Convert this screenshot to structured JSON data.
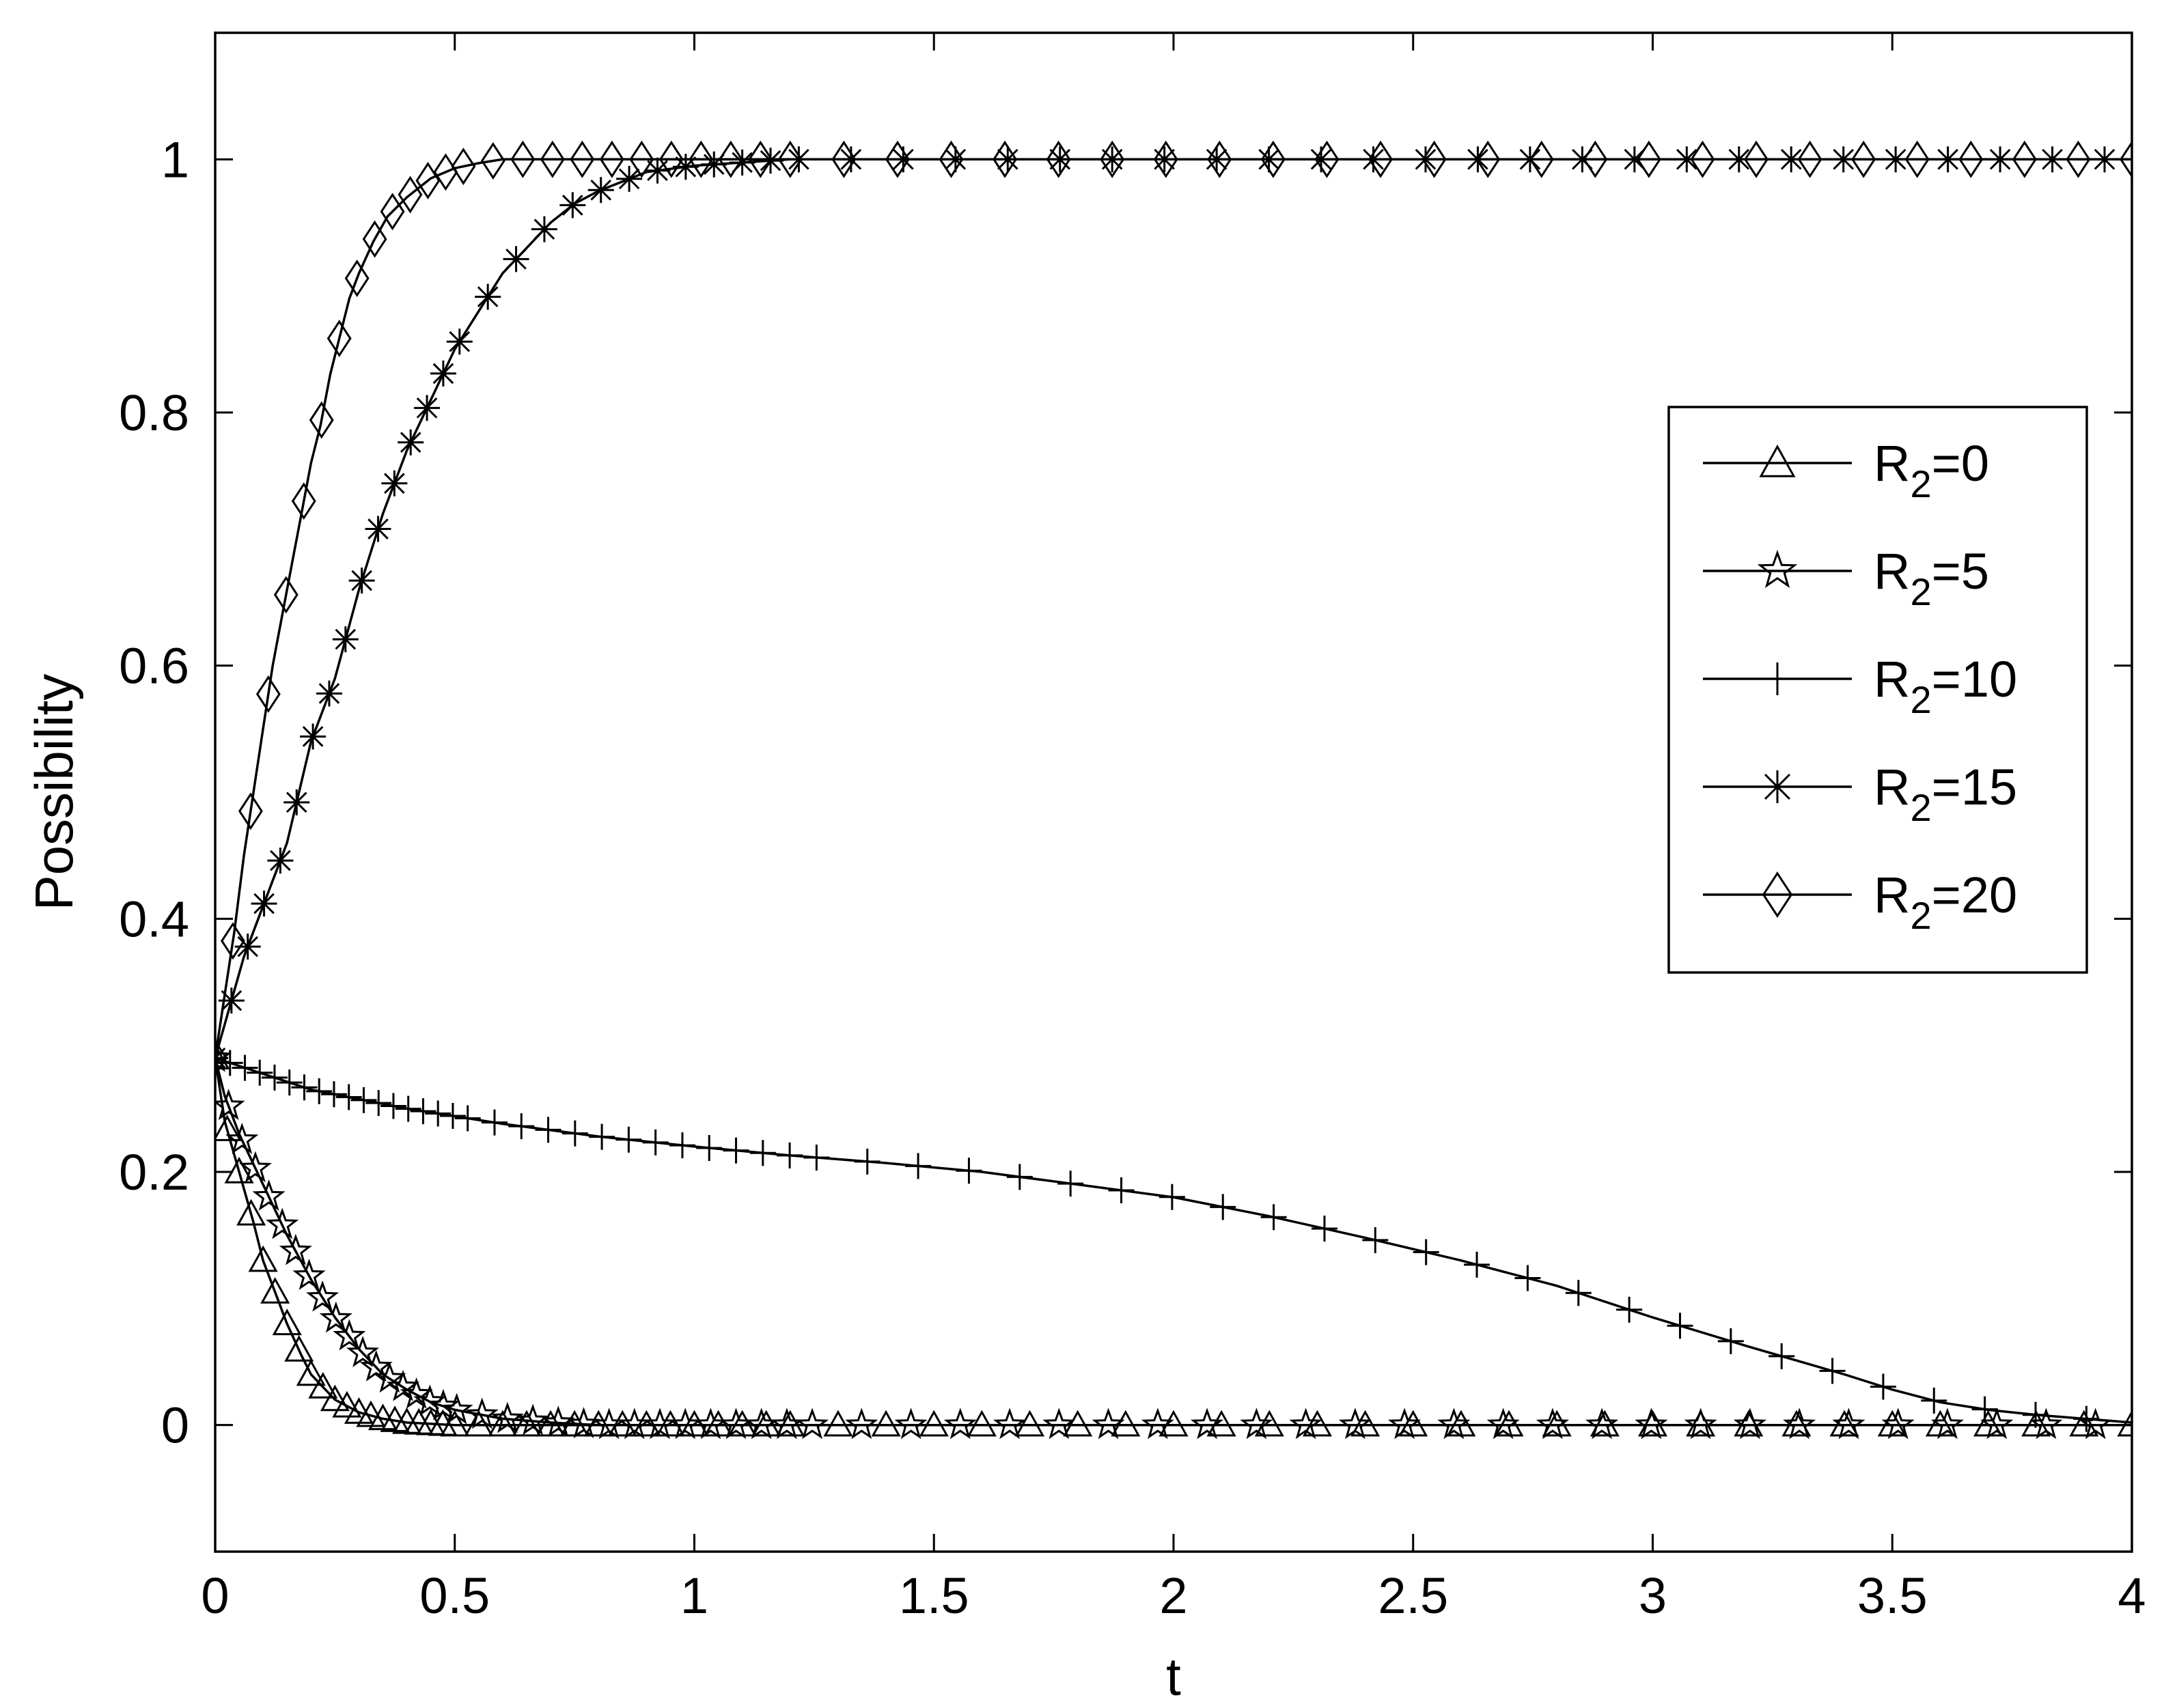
{
  "chart_data": {
    "type": "line",
    "title": "",
    "xlabel": "t",
    "ylabel": "Possibility",
    "xlim": [
      0,
      4
    ],
    "ylim": [
      -0.1,
      1.1
    ],
    "xticks": [
      0,
      0.5,
      1,
      1.5,
      2,
      2.5,
      3,
      3.5,
      4
    ],
    "xtick_labels": [
      "0",
      "0.5",
      "1",
      "1.5",
      "2",
      "2.5",
      "3",
      "3.5",
      "4"
    ],
    "yticks": [
      0,
      0.2,
      0.4,
      0.6,
      0.8,
      1
    ],
    "ytick_labels": [
      "0",
      "0.2",
      "0.4",
      "0.6",
      "0.8",
      "1"
    ],
    "grid": false,
    "legend_position": "right",
    "series": [
      {
        "name": "R2=0",
        "label_main": "R",
        "label_sub": "2",
        "label_rest": "=0",
        "marker": "triangle",
        "x": [
          0,
          0.02,
          0.05,
          0.08,
          0.1,
          0.13,
          0.15,
          0.18,
          0.2,
          0.25,
          0.3,
          0.35,
          0.4,
          0.5,
          0.6,
          0.8,
          1.0,
          1.5,
          2.0,
          2.5,
          3.0,
          3.5,
          4.0
        ],
        "y": [
          0.29,
          0.24,
          0.2,
          0.16,
          0.13,
          0.1,
          0.08,
          0.055,
          0.04,
          0.02,
          0.01,
          0.005,
          0.002,
          0,
          0,
          0,
          0,
          0,
          0,
          0,
          0,
          0,
          0
        ]
      },
      {
        "name": "R2=5",
        "label_main": "R",
        "label_sub": "2",
        "label_rest": "=5",
        "marker": "star",
        "x": [
          0,
          0.02,
          0.05,
          0.1,
          0.15,
          0.2,
          0.25,
          0.3,
          0.35,
          0.4,
          0.45,
          0.5,
          0.6,
          0.7,
          0.8,
          1.0,
          1.5,
          2.0,
          2.5,
          3.0,
          3.5,
          4.0
        ],
        "y": [
          0.29,
          0.26,
          0.23,
          0.19,
          0.15,
          0.115,
          0.085,
          0.06,
          0.04,
          0.028,
          0.018,
          0.012,
          0.005,
          0.002,
          0,
          0,
          0,
          0,
          0,
          0,
          0,
          0
        ]
      },
      {
        "name": "R2=10",
        "label_main": "R",
        "label_sub": "2",
        "label_rest": "=10",
        "marker": "plus",
        "x": [
          0,
          0.2,
          0.4,
          0.6,
          0.8,
          1.0,
          1.2,
          1.4,
          1.6,
          1.8,
          2.0,
          2.2,
          2.4,
          2.6,
          2.8,
          3.0,
          3.2,
          3.4,
          3.5,
          3.6,
          3.7,
          3.8,
          3.9,
          4.0
        ],
        "y": [
          0.29,
          0.265,
          0.25,
          0.238,
          0.228,
          0.22,
          0.213,
          0.207,
          0.2,
          0.19,
          0.18,
          0.165,
          0.148,
          0.13,
          0.11,
          0.085,
          0.062,
          0.04,
          0.028,
          0.018,
          0.012,
          0.008,
          0.005,
          0.002
        ]
      },
      {
        "name": "R2=15",
        "label_main": "R",
        "label_sub": "2",
        "label_rest": "=15",
        "marker": "asterisk",
        "x": [
          0,
          0.03,
          0.06,
          0.1,
          0.15,
          0.2,
          0.25,
          0.3,
          0.35,
          0.4,
          0.45,
          0.5,
          0.55,
          0.6,
          0.65,
          0.7,
          0.75,
          0.8,
          0.9,
          1.0,
          1.2,
          1.5,
          2.0,
          2.5,
          3.0,
          3.5,
          4.0
        ],
        "y": [
          0.29,
          0.33,
          0.37,
          0.41,
          0.46,
          0.54,
          0.59,
          0.66,
          0.72,
          0.77,
          0.81,
          0.85,
          0.88,
          0.91,
          0.93,
          0.95,
          0.965,
          0.975,
          0.99,
          0.995,
          1,
          1,
          1,
          1,
          1,
          1,
          1
        ]
      },
      {
        "name": "R2=20",
        "label_main": "R",
        "label_sub": "2",
        "label_rest": "=20",
        "marker": "diamond",
        "x": [
          0,
          0.02,
          0.04,
          0.06,
          0.08,
          0.1,
          0.12,
          0.14,
          0.16,
          0.18,
          0.2,
          0.22,
          0.24,
          0.26,
          0.28,
          0.3,
          0.33,
          0.36,
          0.4,
          0.45,
          0.5,
          0.55,
          0.6,
          0.7,
          0.8,
          1.0,
          1.5,
          2.0,
          2.5,
          3.0,
          3.5,
          4.0
        ],
        "y": [
          0.29,
          0.34,
          0.39,
          0.45,
          0.5,
          0.55,
          0.6,
          0.64,
          0.68,
          0.72,
          0.76,
          0.79,
          0.83,
          0.86,
          0.89,
          0.91,
          0.935,
          0.955,
          0.97,
          0.985,
          0.993,
          0.997,
          1,
          1,
          1,
          1,
          1,
          1,
          1,
          1,
          1,
          1
        ]
      }
    ]
  }
}
